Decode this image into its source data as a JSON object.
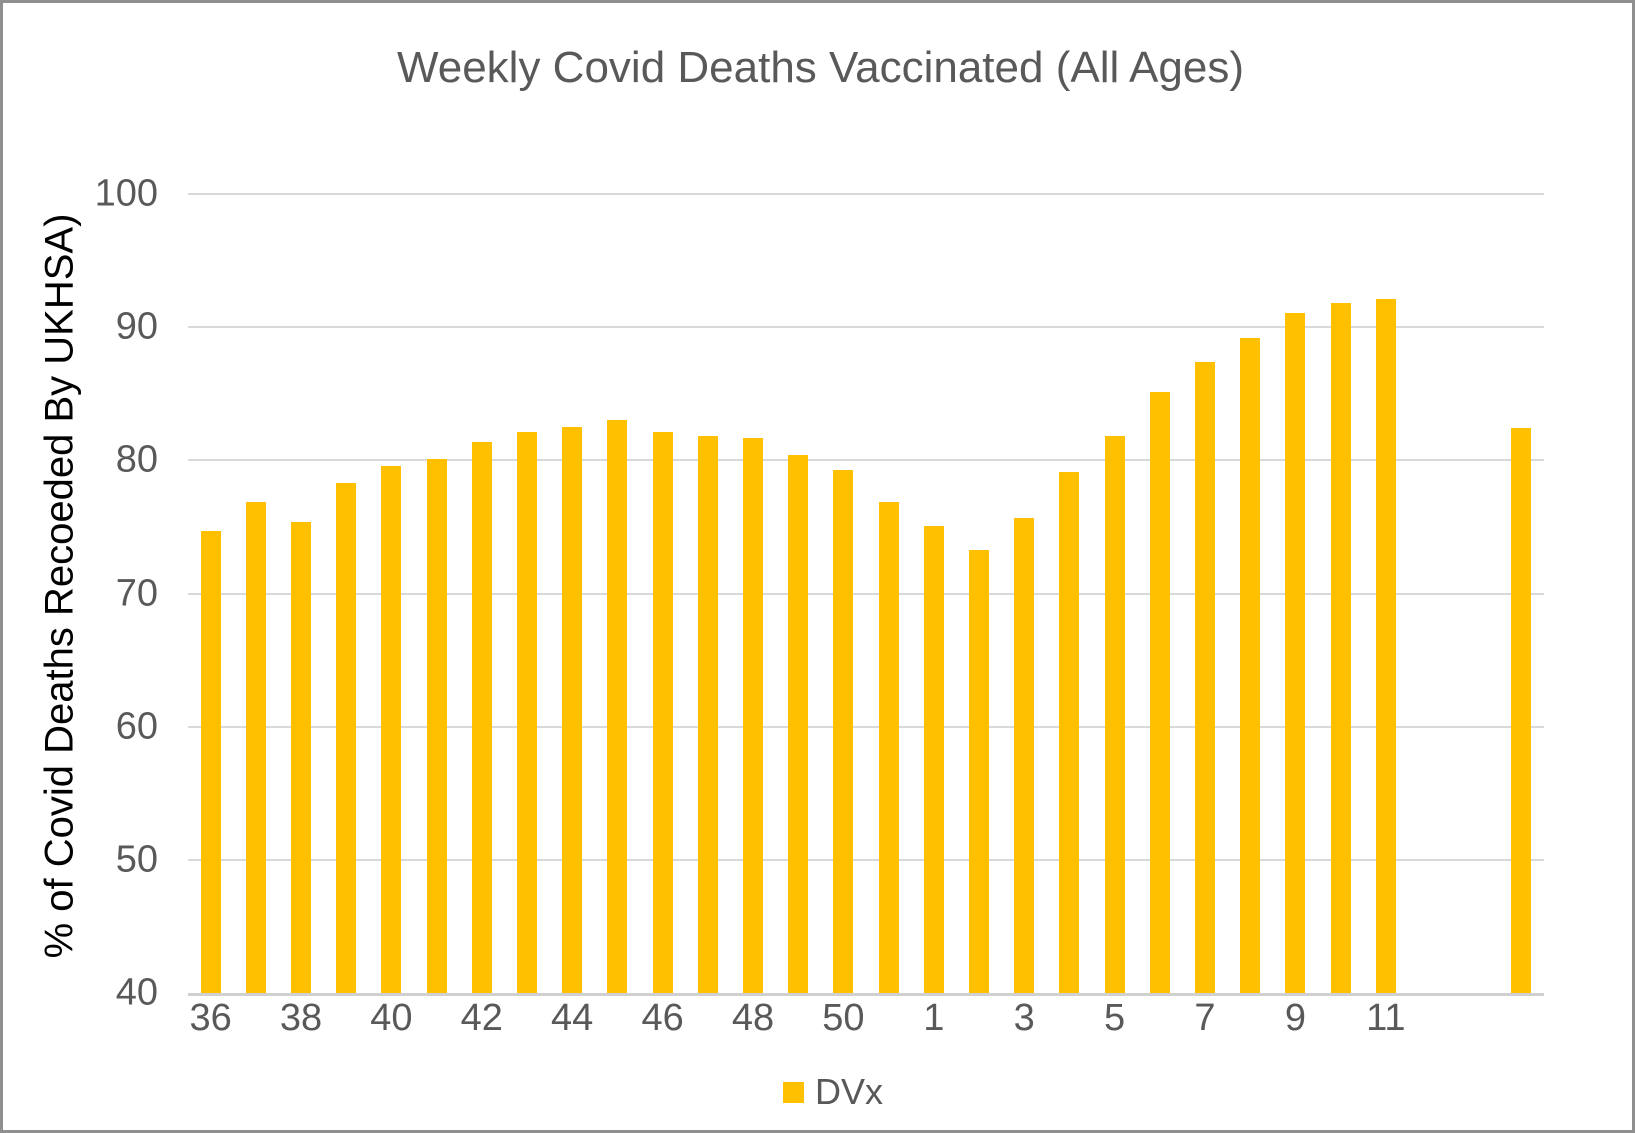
{
  "frame": {
    "background": "#FFFFFF",
    "border_color": "#8F8F8F"
  },
  "colors": {
    "bar": "#FFC000",
    "title_text": "#595959",
    "tick_text": "#595959",
    "y_axis_title_text": "#000000",
    "gridline": "#D9D9D9",
    "axis_line": "#D0D0D0"
  },
  "legend": {
    "label": "DVx",
    "swatch_color": "#FFC000",
    "position": "bottom-center"
  },
  "chart_data": {
    "type": "bar",
    "title": "Weekly Covid Deaths Vaccinated (All Ages)",
    "ylabel": "% of Covid Deaths Recoeded By UKHSA)",
    "xlabel": "",
    "ylim": [
      40,
      100
    ],
    "yticks": [
      100,
      90,
      80,
      70,
      60,
      50,
      40
    ],
    "grid": "horizontal",
    "legend_position": "bottom",
    "total_slots": 30,
    "x_ticks": [
      {
        "label": "36",
        "slot": 0
      },
      {
        "label": "38",
        "slot": 2
      },
      {
        "label": "40",
        "slot": 4
      },
      {
        "label": "42",
        "slot": 6
      },
      {
        "label": "44",
        "slot": 8
      },
      {
        "label": "46",
        "slot": 10
      },
      {
        "label": "48",
        "slot": 12
      },
      {
        "label": "50",
        "slot": 14
      },
      {
        "label": "1",
        "slot": 16
      },
      {
        "label": "3",
        "slot": 18
      },
      {
        "label": "5",
        "slot": 20
      },
      {
        "label": "7",
        "slot": 22
      },
      {
        "label": "9",
        "slot": 24
      },
      {
        "label": "11",
        "slot": 26
      }
    ],
    "series": [
      {
        "name": "DVx",
        "color": "#FFC000",
        "points": [
          {
            "week": "36",
            "value": 74.7,
            "slot": 0
          },
          {
            "week": "37",
            "value": 76.9,
            "slot": 1
          },
          {
            "week": "38",
            "value": 75.4,
            "slot": 2
          },
          {
            "week": "39",
            "value": 78.3,
            "slot": 3
          },
          {
            "week": "40",
            "value": 79.6,
            "slot": 4
          },
          {
            "week": "41",
            "value": 80.1,
            "slot": 5
          },
          {
            "week": "42",
            "value": 81.4,
            "slot": 6
          },
          {
            "week": "43",
            "value": 82.1,
            "slot": 7
          },
          {
            "week": "44",
            "value": 82.5,
            "slot": 8
          },
          {
            "week": "45",
            "value": 83.0,
            "slot": 9
          },
          {
            "week": "46",
            "value": 82.1,
            "slot": 10
          },
          {
            "week": "47",
            "value": 81.8,
            "slot": 11
          },
          {
            "week": "48",
            "value": 81.7,
            "slot": 12
          },
          {
            "week": "49",
            "value": 80.4,
            "slot": 13
          },
          {
            "week": "50",
            "value": 79.3,
            "slot": 14
          },
          {
            "week": "51",
            "value": 76.9,
            "slot": 15
          },
          {
            "week": "1",
            "value": 75.1,
            "slot": 16
          },
          {
            "week": "2",
            "value": 73.3,
            "slot": 17
          },
          {
            "week": "3",
            "value": 75.7,
            "slot": 18
          },
          {
            "week": "4",
            "value": 79.1,
            "slot": 19
          },
          {
            "week": "5",
            "value": 81.8,
            "slot": 20
          },
          {
            "week": "6",
            "value": 85.1,
            "slot": 21
          },
          {
            "week": "7",
            "value": 87.4,
            "slot": 22
          },
          {
            "week": "8",
            "value": 89.2,
            "slot": 23
          },
          {
            "week": "9",
            "value": 91.1,
            "slot": 24
          },
          {
            "week": "10",
            "value": 91.8,
            "slot": 25
          },
          {
            "week": "11",
            "value": 92.1,
            "slot": 26
          },
          {
            "week": "",
            "value": 82.4,
            "slot": 29
          }
        ]
      }
    ]
  }
}
